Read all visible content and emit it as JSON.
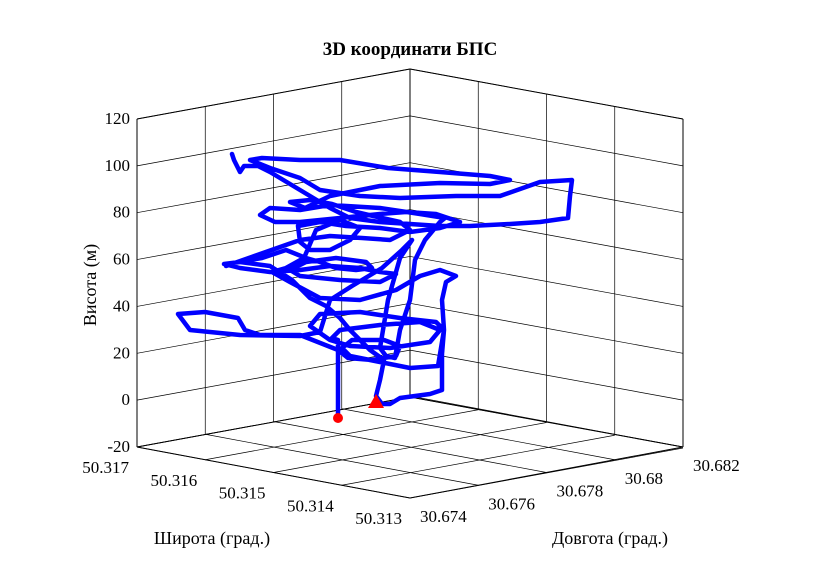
{
  "chart_data": {
    "type": "line",
    "title": "3D координати БПС",
    "xlabel": "Довгота (град.)",
    "ylabel": "Широта (град.)",
    "zlabel": "Висота (м)",
    "x_ticks": [
      "30.674",
      "30.676",
      "30.678",
      "30.68",
      "30.682"
    ],
    "y_ticks": [
      "50.317",
      "50.316",
      "50.315",
      "50.314",
      "50.313"
    ],
    "z_ticks": [
      "120",
      "100",
      "80",
      "60",
      "40",
      "20",
      "0",
      "-20"
    ],
    "zlim": [
      -20,
      120
    ],
    "grid": true,
    "series": [
      {
        "marker": "none",
        "color": "#0000ff",
        "approx_points_lon_lat_alt": [
          [
            30.6745,
            50.314,
            0
          ],
          [
            30.6745,
            50.314,
            20
          ],
          [
            30.6748,
            50.3142,
            20
          ],
          [
            30.677,
            50.3138,
            40
          ],
          [
            30.6785,
            50.3135,
            40
          ],
          [
            30.679,
            50.3136,
            30
          ],
          [
            30.6765,
            50.3142,
            35
          ],
          [
            30.6735,
            50.3158,
            38
          ],
          [
            30.674,
            50.3165,
            38
          ],
          [
            30.6755,
            50.3162,
            25
          ],
          [
            30.6775,
            50.315,
            25
          ],
          [
            30.676,
            50.316,
            58
          ],
          [
            30.6745,
            50.3168,
            60
          ],
          [
            30.678,
            50.315,
            55
          ],
          [
            30.6795,
            50.3146,
            50
          ],
          [
            30.678,
            50.316,
            80
          ],
          [
            30.679,
            50.3158,
            85
          ],
          [
            30.6808,
            50.315,
            90
          ],
          [
            30.681,
            50.314,
            80
          ],
          [
            30.6785,
            50.316,
            95
          ],
          [
            30.675,
            50.317,
            103
          ]
        ]
      }
    ],
    "markers": [
      {
        "shape": "circle",
        "color": "#ff0000",
        "lon": 30.6745,
        "lat": 50.314,
        "alt": -8
      },
      {
        "shape": "triangle",
        "color": "#ff0000",
        "lon": 30.6748,
        "lat": 50.3138,
        "alt": 0
      }
    ]
  }
}
